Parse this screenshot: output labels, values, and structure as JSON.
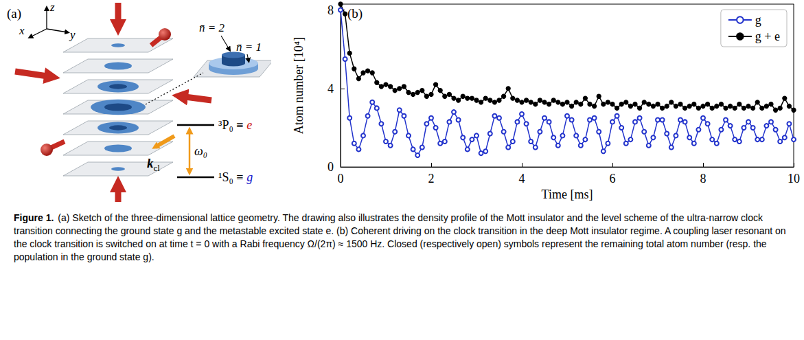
{
  "panel_a": {
    "label": "(a)",
    "axes": {
      "z": "z",
      "x": "x",
      "y": "y"
    },
    "inset": {
      "inner": "n̄ = 2",
      "outer": "n̄ = 1"
    },
    "beam_label": {
      "main": "k",
      "sub": "cl"
    },
    "levels": {
      "excited": {
        "term": "³P₀ ≡",
        "state": "e",
        "color": "#cc1111"
      },
      "ground": {
        "term": "¹S₀ ≡",
        "state": "g",
        "color": "#1111cc"
      },
      "transition": "ω₀"
    }
  },
  "chart_data": {
    "type": "line",
    "panel_label": "(b)",
    "x_label": "Time [ms]",
    "y_label": "Atom number [10⁴]",
    "x": [
      0,
      0.1,
      0.2,
      0.3,
      0.4,
      0.5,
      0.6,
      0.7,
      0.8,
      0.9,
      1,
      1.1,
      1.2,
      1.3,
      1.4,
      1.5,
      1.6,
      1.7,
      1.8,
      1.9,
      2,
      2.1,
      2.2,
      2.3,
      2.4,
      2.5,
      2.6,
      2.7,
      2.8,
      2.9,
      3,
      3.1,
      3.2,
      3.3,
      3.4,
      3.5,
      3.6,
      3.7,
      3.8,
      3.9,
      4,
      4.1,
      4.2,
      4.3,
      4.4,
      4.5,
      4.6,
      4.7,
      4.8,
      4.9,
      5,
      5.1,
      5.2,
      5.3,
      5.4,
      5.5,
      5.6,
      5.7,
      5.8,
      5.9,
      6,
      6.1,
      6.2,
      6.3,
      6.4,
      6.5,
      6.6,
      6.7,
      6.8,
      6.9,
      7,
      7.1,
      7.2,
      7.3,
      7.4,
      7.5,
      7.6,
      7.7,
      7.8,
      7.9,
      8,
      8.1,
      8.2,
      8.3,
      8.4,
      8.5,
      8.6,
      8.7,
      8.8,
      8.9,
      9,
      9.1,
      9.2,
      9.3,
      9.4,
      9.5,
      9.6,
      9.7,
      9.8,
      9.9,
      10
    ],
    "series": [
      {
        "name": "g",
        "color": "#2233cc",
        "marker": "open_circle",
        "line_style": "solid",
        "values": [
          8.0,
          5.5,
          2.5,
          1.2,
          0.9,
          1.6,
          2.6,
          3.3,
          3.0,
          2.2,
          1.3,
          1.1,
          1.8,
          2.9,
          2.6,
          1.6,
          0.9,
          0.6,
          1.0,
          2.2,
          2.5,
          2.0,
          1.2,
          1.3,
          2.3,
          2.8,
          2.4,
          1.5,
          0.9,
          1.4,
          1.6,
          0.7,
          0.8,
          1.7,
          2.6,
          2.5,
          1.8,
          1.0,
          1.3,
          2.3,
          2.7,
          2.2,
          1.3,
          1.0,
          1.8,
          2.5,
          2.3,
          1.5,
          1.1,
          1.6,
          2.6,
          2.4,
          1.6,
          1.1,
          1.4,
          2.4,
          2.5,
          1.8,
          0.8,
          1.2,
          2.3,
          2.6,
          2.0,
          1.2,
          1.4,
          2.3,
          2.5,
          1.8,
          1.1,
          1.5,
          2.4,
          2.4,
          1.7,
          1.0,
          1.6,
          2.4,
          2.3,
          1.5,
          1.2,
          1.9,
          2.5,
          2.2,
          1.4,
          1.2,
          1.9,
          2.4,
          2.1,
          1.4,
          1.3,
          2.0,
          2.3,
          2.0,
          1.4,
          1.4,
          2.1,
          2.3,
          1.9,
          1.3,
          1.5,
          2.2,
          1.4
        ]
      },
      {
        "name": "g + e",
        "color": "#000000",
        "marker": "circle",
        "line_style": "solid",
        "values": [
          8.3,
          7.8,
          5.8,
          5.0,
          4.5,
          4.8,
          4.9,
          4.8,
          4.3,
          4.1,
          4.2,
          4.1,
          3.9,
          4.0,
          4.1,
          3.8,
          3.7,
          3.8,
          3.9,
          3.6,
          3.7,
          4.2,
          3.9,
          3.6,
          3.7,
          3.5,
          3.4,
          3.6,
          3.5,
          3.5,
          3.4,
          3.3,
          3.5,
          3.4,
          3.3,
          3.4,
          3.6,
          4.0,
          3.5,
          3.4,
          3.3,
          3.4,
          3.3,
          3.2,
          3.4,
          3.3,
          3.2,
          3.4,
          3.3,
          3.2,
          3.3,
          3.1,
          3.3,
          3.2,
          3.5,
          3.2,
          3.1,
          3.6,
          3.2,
          3.3,
          3.2,
          3.0,
          3.2,
          3.3,
          3.1,
          3.2,
          3.0,
          3.3,
          3.2,
          3.1,
          3.2,
          3.0,
          3.1,
          3.3,
          3.1,
          3.2,
          3.0,
          3.1,
          3.2,
          3.0,
          3.1,
          3.2,
          3.0,
          3.1,
          3.2,
          3.0,
          3.1,
          3.0,
          3.2,
          3.0,
          3.1,
          3.0,
          3.3,
          3.0,
          3.1,
          3.2,
          2.9,
          3.0,
          3.5,
          3.1,
          2.9
        ]
      }
    ],
    "xlim": [
      0,
      10
    ],
    "xticks": [
      0,
      2,
      4,
      6,
      8,
      10
    ],
    "ylim": [
      0,
      8.3
    ],
    "yticks": [
      0,
      4,
      8
    ],
    "grid": false,
    "legend": "upper right"
  },
  "caption": {
    "label": "Figure 1.",
    "text": "(a) Sketch of the three-dimensional lattice geometry. The drawing also illustrates the density profile of the Mott insulator and the level scheme of the ultra-narrow clock transition connecting the ground state g and the metastable excited state e. (b) Coherent driving on the clock transition in the deep Mott insulator regime. A coupling laser resonant on the clock transition is switched on at time t = 0 with a Rabi frequency Ω/(2π) ≈ 1500 Hz. Closed (respectively open) symbols represent the remaining total atom number (resp. the population in the ground state g)."
  }
}
